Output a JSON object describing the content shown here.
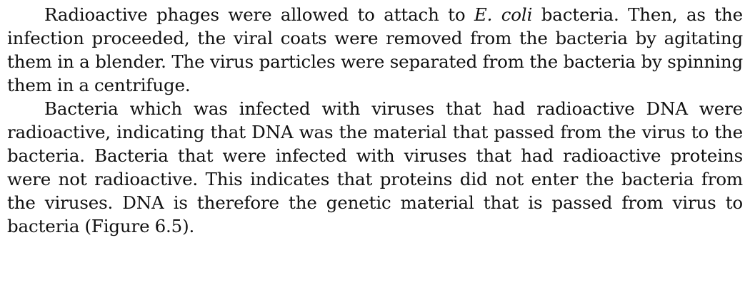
{
  "paragraphs": [
    {
      "before_italic": "Radioactive phages were allowed to attach to ",
      "italic": "E. coli",
      "after_italic": " bacteria. Then, as the infection proceeded, the viral coats were removed from the bacteria by agitating them in a blender. The virus particles were separated from the bacteria by spinning them in a centrifuge."
    },
    {
      "text": "Bacteria which was infected with viruses that had radioactive DNA were radioactive, indicating that DNA was the material that passed from the virus to the bacteria. Bacteria that were infected with viruses that had radioactive proteins were not radioactive. This indicates that proteins did not enter the bacteria from the viruses. DNA is therefore the genetic material that is passed from virus to bacteria (Figure 6.5)."
    }
  ]
}
